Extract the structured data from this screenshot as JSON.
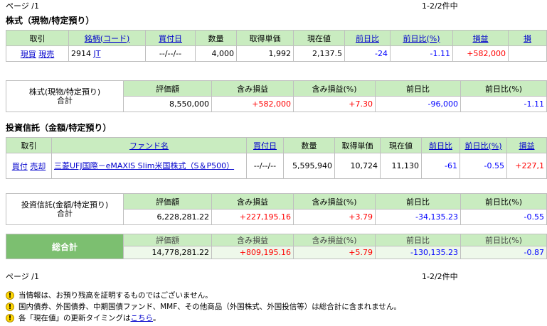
{
  "pager_top": {
    "page": "ページ /1",
    "count": "1-2/2件中"
  },
  "pager_bottom": {
    "page": "ページ /1",
    "count": "1-2/2件中"
  },
  "stocks": {
    "title": "株式（現物/特定預り）",
    "headers": [
      "取引",
      "銘柄(コード)",
      "買付日",
      "数量",
      "取得単価",
      "現在値",
      "前日比",
      "前日比(%)",
      "損益",
      "損"
    ],
    "row": {
      "buy": "現買",
      "sell": "現売",
      "code": "2914",
      "name": "JT",
      "date": "--/--/--",
      "qty": "4,000",
      "cost": "1,992",
      "price": "2,137.5",
      "change": "-24",
      "change_pct": "-1.11",
      "pnl": "+582,000"
    },
    "summary": {
      "label1": "株式(現物/特定預り)",
      "label2": "合計",
      "headers": [
        "評価額",
        "含み損益",
        "含み損益(%)",
        "前日比",
        "前日比(%)"
      ],
      "values": {
        "value": "8,550,000",
        "pnl": "+582,000",
        "pnl_pct": "+7.30",
        "change": "-96,000",
        "change_pct": "-1.11"
      }
    }
  },
  "funds": {
    "title": "投資信託（金額/特定預り）",
    "headers": [
      "取引",
      "ファンド名",
      "買付日",
      "数量",
      "取得単価",
      "現在値",
      "前日比",
      "前日比(%)",
      "損益"
    ],
    "row": {
      "buy": "買付",
      "sell": "売却",
      "name": "三菱UFJ国際－eMAXIS Slim米国株式（S＆P500）",
      "date": "--/--/--",
      "qty": "5,595,940",
      "cost": "10,724",
      "price": "11,130",
      "change": "-61",
      "change_pct": "-0.55",
      "pnl": "+227,1"
    },
    "summary": {
      "label1": "投資信託(金額/特定預り)",
      "label2": "合計",
      "headers": [
        "評価額",
        "含み損益",
        "含み損益(%)",
        "前日比",
        "前日比(%)"
      ],
      "values": {
        "value": "6,228,281.22",
        "pnl": "+227,195.16",
        "pnl_pct": "+3.79",
        "change": "-34,135.23",
        "change_pct": "-0.55"
      }
    }
  },
  "total": {
    "label": "総合計",
    "headers": [
      "評価額",
      "含み損益",
      "含み損益(%)",
      "前日比",
      "前日比(%)"
    ],
    "values": {
      "value": "14,778,281.22",
      "pnl": "+809,195.16",
      "pnl_pct": "+5.79",
      "change": "-130,135.23",
      "change_pct": "-0.87"
    }
  },
  "notes": [
    {
      "text": "当情報は、お預り残高を証明するものではございません。"
    },
    {
      "text": "国内債券、外国債券、中期国債ファンド、MMF、その他商品（外国株式、外国投信等）は総合計に含まれません。"
    },
    {
      "text": "各「現在値」の更新タイミングは",
      "link": "こちら",
      "tail": "。"
    }
  ],
  "colors": {
    "header_bg": "#c9ecc0",
    "total_bg": "#7cbf70",
    "negative": "#0000ff",
    "positive": "#ff0000",
    "link": "#0000cc"
  }
}
